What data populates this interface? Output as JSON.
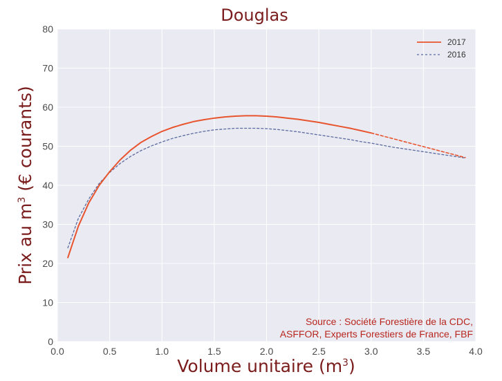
{
  "chart_data": {
    "type": "line",
    "title": "Douglas",
    "xlabel": "Volume unitaire (m",
    "xlabel_sup": "3",
    "xlabel_end": ")",
    "ylabel": "Prix au m",
    "ylabel_sup": "3",
    "ylabel_end": " (€ courants)",
    "xlim": [
      0.0,
      4.0
    ],
    "ylim": [
      0,
      80
    ],
    "xticks": [
      "0.0",
      "0.5",
      "1.0",
      "1.5",
      "2.0",
      "2.5",
      "3.0",
      "3.5",
      "4.0"
    ],
    "yticks": [
      "0",
      "10",
      "20",
      "30",
      "40",
      "50",
      "60",
      "70",
      "80"
    ],
    "grid": true,
    "legend_position": "top-right",
    "series": [
      {
        "name": "2017",
        "color": "#e8542e",
        "style": "solid-then-dashed",
        "solid_until_x": 3.0,
        "x": [
          0.1,
          0.2,
          0.3,
          0.4,
          0.5,
          0.6,
          0.7,
          0.8,
          0.9,
          1.0,
          1.1,
          1.2,
          1.3,
          1.4,
          1.5,
          1.6,
          1.7,
          1.8,
          1.9,
          2.0,
          2.1,
          2.2,
          2.3,
          2.4,
          2.5,
          2.6,
          2.7,
          2.8,
          2.9,
          3.0,
          3.1,
          3.2,
          3.3,
          3.4,
          3.5,
          3.6,
          3.7,
          3.8,
          3.9
        ],
        "y": [
          21.5,
          29.5,
          35.5,
          40.0,
          43.5,
          46.5,
          49.0,
          51.0,
          52.5,
          53.8,
          54.8,
          55.6,
          56.3,
          56.8,
          57.2,
          57.5,
          57.7,
          57.8,
          57.8,
          57.7,
          57.5,
          57.2,
          56.9,
          56.5,
          56.1,
          55.6,
          55.1,
          54.6,
          54.0,
          53.4,
          52.7,
          52.0,
          51.3,
          50.6,
          49.9,
          49.2,
          48.5,
          47.8,
          47.1
        ]
      },
      {
        "name": "2016",
        "color": "#5a6a9e",
        "style": "dashed",
        "x": [
          0.1,
          0.2,
          0.3,
          0.4,
          0.5,
          0.6,
          0.7,
          0.8,
          0.9,
          1.0,
          1.1,
          1.2,
          1.3,
          1.4,
          1.5,
          1.6,
          1.7,
          1.8,
          1.9,
          2.0,
          2.1,
          2.2,
          2.3,
          2.4,
          2.5,
          2.6,
          2.7,
          2.8,
          2.9,
          3.0,
          3.1,
          3.2,
          3.3,
          3.4,
          3.5,
          3.6,
          3.7,
          3.8,
          3.9
        ],
        "y": [
          24.0,
          31.5,
          36.5,
          40.5,
          43.3,
          45.6,
          47.4,
          48.9,
          50.1,
          51.1,
          52.0,
          52.7,
          53.3,
          53.8,
          54.2,
          54.4,
          54.6,
          54.6,
          54.6,
          54.5,
          54.3,
          54.0,
          53.7,
          53.3,
          52.9,
          52.5,
          52.1,
          51.7,
          51.2,
          50.8,
          50.3,
          49.8,
          49.4,
          49.0,
          48.6,
          48.2,
          47.8,
          47.4,
          47.0
        ]
      }
    ],
    "annotations": [
      "Source : Société Forestière de la CDC,",
      "ASFFOR, Experts Forestiers de France, FBF"
    ]
  },
  "colors": {
    "plot_background": "#eaeaf2",
    "gridline": "#ffffff",
    "title": "#7a1c1c",
    "source_text": "#b8261e"
  }
}
